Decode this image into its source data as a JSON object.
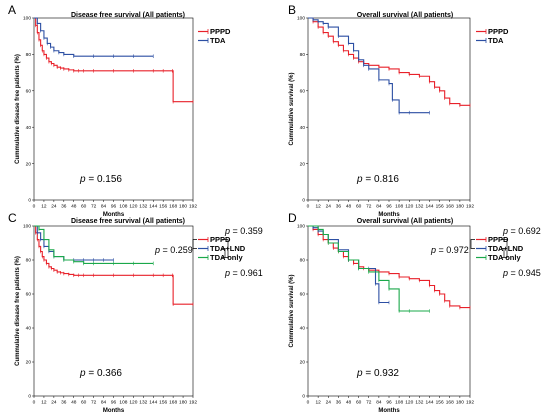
{
  "chart_data": [
    {
      "type": "line",
      "panel": "A",
      "title": "Disease free survival (All patients)",
      "xlabel": "Months",
      "ylabel": "Cummulative disease free patients (%)",
      "xlim": [
        0,
        192
      ],
      "ylim": [
        0,
        100
      ],
      "xticks": [
        "0",
        "12",
        "24",
        "36",
        "48",
        "60",
        "72",
        "84",
        "96",
        "108",
        "120",
        "132",
        "144",
        "156",
        "168",
        "180",
        "192"
      ],
      "yticks": [
        "0",
        "20",
        "40",
        "60",
        "80",
        "100"
      ],
      "legend": [
        "PPPD",
        "TDA"
      ],
      "p_values": {
        "overall": "0.156"
      },
      "series": [
        {
          "name": "PPPD",
          "color": "#e8212a",
          "x": [
            0,
            2,
            4,
            6,
            8,
            10,
            12,
            15,
            18,
            21,
            24,
            28,
            32,
            36,
            42,
            48,
            54,
            60,
            72,
            96,
            120,
            144,
            156,
            167,
            168,
            192
          ],
          "y": [
            100,
            96,
            92,
            88,
            85,
            82,
            80,
            78,
            76,
            75,
            74,
            73,
            72.5,
            72,
            71.5,
            71,
            71,
            71,
            71,
            71,
            71,
            71,
            71,
            71,
            54,
            54
          ]
        },
        {
          "name": "TDA",
          "color": "#2c4fa3",
          "x": [
            0,
            4,
            8,
            12,
            16,
            20,
            24,
            30,
            36,
            48,
            72,
            96,
            120,
            144
          ],
          "y": [
            100,
            97,
            93,
            89,
            86,
            84,
            82,
            81,
            80,
            79,
            79,
            79,
            79,
            79
          ]
        }
      ]
    },
    {
      "type": "line",
      "panel": "B",
      "title": "Overall survival (All patients)",
      "xlabel": "Months",
      "ylabel": "Cummulative survival (%)",
      "xlim": [
        0,
        192
      ],
      "ylim": [
        0,
        100
      ],
      "xticks": [
        "0",
        "12",
        "24",
        "36",
        "48",
        "60",
        "72",
        "84",
        "96",
        "108",
        "120",
        "132",
        "144",
        "156",
        "168",
        "180",
        "192"
      ],
      "yticks": [
        "0",
        "20",
        "40",
        "60",
        "80",
        "100"
      ],
      "legend": [
        "PPPD",
        "TDA"
      ],
      "p_values": {
        "overall": "0.816"
      },
      "series": [
        {
          "name": "PPPD",
          "color": "#e8212a",
          "x": [
            0,
            6,
            12,
            18,
            24,
            30,
            36,
            42,
            48,
            54,
            60,
            66,
            72,
            84,
            96,
            108,
            120,
            132,
            144,
            150,
            156,
            162,
            168,
            180,
            192
          ],
          "y": [
            100,
            98,
            95,
            92,
            90,
            87,
            85,
            82,
            80,
            78,
            76,
            75,
            74,
            73,
            72,
            70,
            69,
            68,
            65,
            62,
            60,
            56,
            53,
            52,
            52
          ]
        },
        {
          "name": "TDA",
          "color": "#2c4fa3",
          "x": [
            0,
            6,
            12,
            18,
            24,
            36,
            48,
            54,
            60,
            66,
            72,
            84,
            96,
            100,
            108,
            120,
            144
          ],
          "y": [
            100,
            99,
            98,
            97,
            95,
            90,
            86,
            82,
            77,
            74,
            72,
            66,
            64,
            55,
            48,
            48,
            48
          ]
        }
      ]
    },
    {
      "type": "line",
      "panel": "C",
      "title": "Disease free survival (All patients)",
      "xlabel": "Months",
      "ylabel": "Cummulative disease free patients (%)",
      "xlim": [
        0,
        192
      ],
      "ylim": [
        0,
        100
      ],
      "xticks": [
        "0",
        "12",
        "24",
        "36",
        "48",
        "60",
        "72",
        "84",
        "96",
        "108",
        "120",
        "132",
        "144",
        "156",
        "168",
        "180",
        "192"
      ],
      "yticks": [
        "0",
        "20",
        "40",
        "60",
        "80",
        "100"
      ],
      "legend": [
        "PPPD",
        "TDA+LND",
        "TDA only"
      ],
      "p_values": {
        "overall": "0.366",
        "pppd_vs_tdalnd": "0.259",
        "pppd_vs_tdaonly": "0.359",
        "tdalnd_vs_tdaonly": "0.961"
      },
      "series": [
        {
          "name": "PPPD",
          "color": "#e8212a",
          "x": [
            0,
            2,
            4,
            6,
            8,
            10,
            12,
            15,
            18,
            21,
            24,
            28,
            32,
            36,
            42,
            48,
            54,
            60,
            72,
            96,
            120,
            144,
            156,
            167,
            168,
            192
          ],
          "y": [
            100,
            96,
            92,
            88,
            85,
            82,
            80,
            78,
            76,
            75,
            74,
            73,
            72.5,
            72,
            71.5,
            71,
            71,
            71,
            71,
            71,
            71,
            71,
            71,
            71,
            54,
            54
          ]
        },
        {
          "name": "TDA+LND",
          "color": "#2c4fa3",
          "x": [
            0,
            4,
            8,
            12,
            18,
            24,
            36,
            48,
            60,
            72,
            84,
            96
          ],
          "y": [
            100,
            96,
            92,
            88,
            85,
            82,
            80,
            80,
            80,
            80,
            80,
            80
          ]
        },
        {
          "name": "TDA only",
          "color": "#1aa84a",
          "x": [
            0,
            6,
            12,
            18,
            24,
            36,
            48,
            60,
            72,
            96,
            120,
            144
          ],
          "y": [
            100,
            98,
            92,
            86,
            82,
            80,
            79,
            78,
            78,
            78,
            78,
            78
          ]
        }
      ]
    },
    {
      "type": "line",
      "panel": "D",
      "title": "Overall survival (All patients)",
      "xlabel": "Months",
      "ylabel": "Cummulative survival (%)",
      "xlim": [
        0,
        192
      ],
      "ylim": [
        0,
        100
      ],
      "xticks": [
        "0",
        "12",
        "24",
        "36",
        "48",
        "60",
        "72",
        "84",
        "96",
        "108",
        "120",
        "132",
        "144",
        "156",
        "168",
        "180",
        "192"
      ],
      "yticks": [
        "0",
        "20",
        "40",
        "60",
        "80",
        "100"
      ],
      "legend": [
        "PPPD",
        "TDA+LND",
        "TDA only"
      ],
      "p_values": {
        "overall": "0.932",
        "pppd_vs_tdalnd": "0.972",
        "pppd_vs_tdaonly": "0.692",
        "tdalnd_vs_tdaonly": "0.945"
      },
      "series": [
        {
          "name": "PPPD",
          "color": "#e8212a",
          "x": [
            0,
            6,
            12,
            18,
            24,
            30,
            36,
            42,
            48,
            54,
            60,
            66,
            72,
            84,
            96,
            108,
            120,
            132,
            144,
            150,
            156,
            162,
            168,
            180,
            192
          ],
          "y": [
            100,
            98,
            95,
            92,
            90,
            87,
            85,
            82,
            80,
            78,
            76,
            75,
            74,
            73,
            72,
            70,
            69,
            68,
            65,
            62,
            60,
            56,
            53,
            52,
            52
          ]
        },
        {
          "name": "TDA+LND",
          "color": "#2c4fa3",
          "x": [
            0,
            6,
            12,
            18,
            24,
            36,
            48,
            60,
            72,
            80,
            84,
            96
          ],
          "y": [
            100,
            99,
            97,
            95,
            92,
            86,
            80,
            75,
            75,
            66,
            55,
            55
          ]
        },
        {
          "name": "TDA only",
          "color": "#1aa84a",
          "x": [
            0,
            12,
            18,
            24,
            36,
            48,
            60,
            72,
            84,
            96,
            108,
            120,
            144
          ],
          "y": [
            100,
            98,
            95,
            90,
            85,
            80,
            75,
            73,
            68,
            63,
            50,
            50,
            50
          ]
        }
      ]
    }
  ],
  "p_symbol": "p",
  "p_equals": " = "
}
